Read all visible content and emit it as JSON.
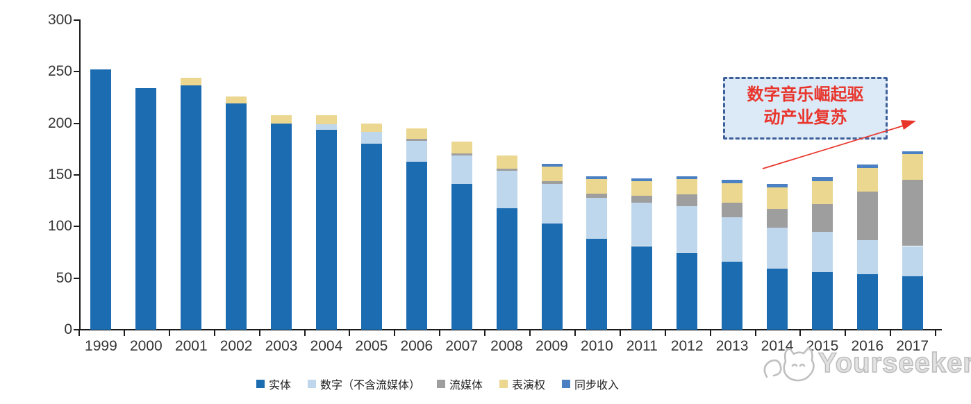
{
  "chart_data": {
    "type": "bar",
    "stacked": true,
    "title": "",
    "xlabel": "",
    "ylabel": "",
    "ylim": [
      0,
      300
    ],
    "yticks": [
      0,
      50,
      100,
      150,
      200,
      250,
      300
    ],
    "grid": false,
    "legend_position": "bottom",
    "categories": [
      "1999",
      "2000",
      "2001",
      "2002",
      "2003",
      "2004",
      "2005",
      "2006",
      "2007",
      "2008",
      "2009",
      "2010",
      "2011",
      "2012",
      "2013",
      "2014",
      "2015",
      "2016",
      "2017"
    ],
    "series": [
      {
        "name": "实体",
        "color": "#1C6CB1",
        "values": [
          252,
          234,
          237,
          219,
          200,
          194,
          180,
          163,
          141,
          118,
          103,
          88,
          81,
          75,
          66,
          59,
          56,
          54,
          52
        ]
      },
      {
        "name": "数字（不含流媒体）",
        "color": "#BFD7ED",
        "values": [
          0,
          0,
          0,
          0,
          0,
          5,
          12,
          20,
          28,
          36,
          38,
          40,
          42,
          45,
          43,
          40,
          39,
          33,
          29
        ]
      },
      {
        "name": "流媒体",
        "color": "#9E9E9E",
        "values": [
          0,
          0,
          0,
          0,
          0,
          0,
          0,
          2,
          2,
          2,
          3,
          4,
          7,
          11,
          14,
          18,
          27,
          47,
          64
        ]
      },
      {
        "name": "表演权",
        "color": "#EBD78F",
        "values": [
          0,
          0,
          7,
          7,
          8,
          9,
          8,
          10,
          11,
          13,
          14,
          14,
          14,
          15,
          19,
          21,
          22,
          23,
          25
        ]
      },
      {
        "name": "同步收入",
        "color": "#4B80C2",
        "values": [
          0,
          0,
          0,
          0,
          0,
          0,
          0,
          0,
          0,
          0,
          3,
          3,
          3,
          3,
          3,
          3,
          4,
          3,
          3
        ]
      }
    ]
  },
  "annotation": {
    "line1": "数字音乐崛起驱",
    "line2": "动产业复苏",
    "border_color": "#3C5F99",
    "fill_color": "#DCE9F7",
    "text_color": "#E8352C",
    "arrow_color": "#E8352C"
  },
  "watermark": {
    "text": "Yourseeker",
    "logo": "cat-logo",
    "color": "#C3C3C3"
  },
  "axes": {
    "color": "#1A1A1A",
    "label_color": "#353535"
  }
}
